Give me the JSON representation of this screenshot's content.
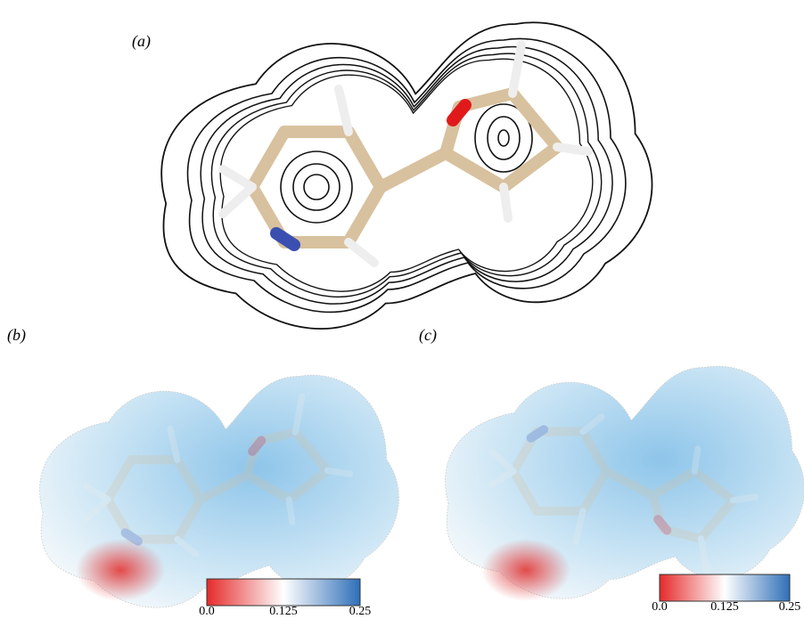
{
  "panels": [
    {
      "label": "(a)"
    },
    {
      "label": "(b)",
      "colorbar": {
        "lim": [
          0,
          0.25
        ],
        "ticks": [
          {
            "value": 0,
            "label": "0.0"
          },
          0.125,
          0.25
        ]
      }
    },
    {
      "label": "(c)",
      "colorbar": {
        "lim": [
          0,
          0.25
        ],
        "ticks": [
          {
            "value": 0,
            "label": "0.0"
          },
          0.125,
          0.25
        ]
      }
    }
  ]
}
